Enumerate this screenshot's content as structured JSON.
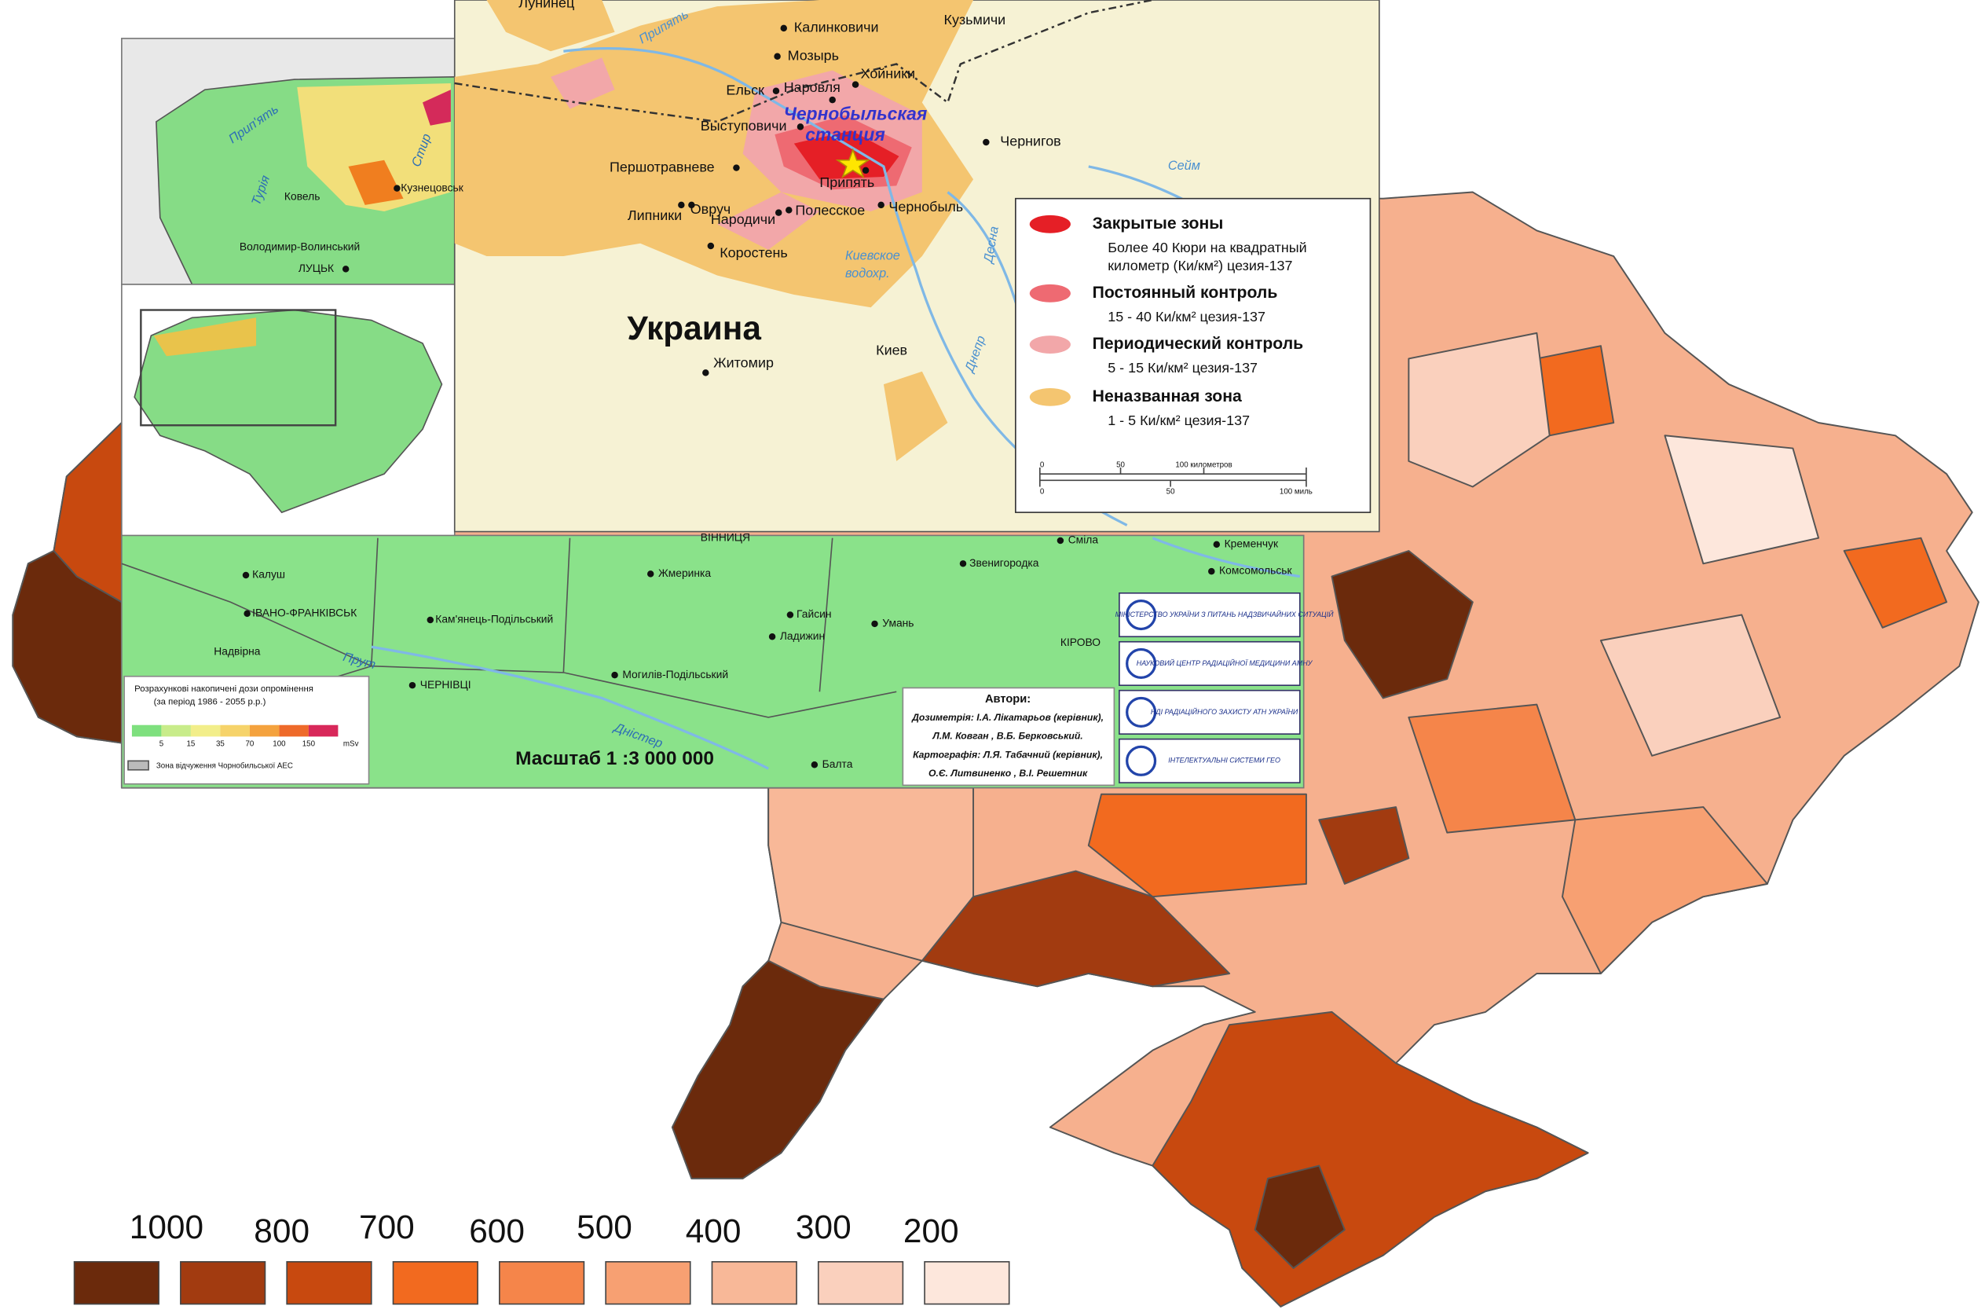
{
  "chernobyl_map": {
    "country": "Украина",
    "station": [
      "Чернобыльская",
      "станция"
    ],
    "places": [
      "Лунинец",
      "Калинковичи",
      "Кузьмичи",
      "Мозырь",
      "Хойники",
      "Ельск",
      "Наровля",
      "Выступовичи",
      "Чернигов",
      "Першотравневе",
      "Припять",
      "Овруч",
      "Чернобыль",
      "Липники",
      "Народичи",
      "Полесское",
      "Коростень",
      "Житомир",
      "Киев"
    ],
    "rivers": [
      "Припять",
      "Сейм",
      "Десна",
      "Киевское",
      "водохр.",
      "Днепр"
    ],
    "legend": [
      {
        "title": "Закрытые зоны",
        "desc": [
          "Более 40 Кюри на квадратный",
          "километр (Ки/км²) цезия-137"
        ]
      },
      {
        "title": "Постоянный контроль",
        "desc": [
          "15 - 40 Ки/км² цезия-137"
        ]
      },
      {
        "title": "Периодический контроль",
        "desc": [
          "5 - 15 Ки/км² цезия-137"
        ]
      },
      {
        "title": "Неназванная зона",
        "desc": [
          "1 - 5 Ки/км² цезия-137"
        ]
      }
    ],
    "scale_km": [
      "0",
      "50",
      "100 километров"
    ],
    "scale_mi": [
      "0",
      "50",
      "100 миль"
    ]
  },
  "dose_map": {
    "places": [
      "Ковель",
      "Кузнецовськ",
      "Володимир-Волинський",
      "ЛУЦЬК",
      "Калуш",
      "ІВАНО-ФРАНКІВСЬК",
      "Надвірна",
      "ЧЕРНІВЦІ",
      "Кам'янець-Подільський",
      "Могилів-Подільський",
      "Жмеринка",
      "Гайсин",
      "Ладижин",
      "Умань",
      "Звенигородка",
      "Сміла",
      "Кременчук",
      "Комсомольськ",
      "КІРОВО",
      "Балта",
      "ВІННИЦЯ"
    ],
    "rivers": [
      "Прип'ять",
      "Турія",
      "Стир",
      "Прут",
      "Дністер"
    ],
    "scale_text": "Масштаб 1 :3  000 000",
    "legend": {
      "title": [
        "Розрахункові накопичені дози опромінення",
        "(за період 1986 - 2055 р.р.)"
      ],
      "ticks": [
        5,
        15,
        35,
        70,
        100,
        150
      ],
      "unit": "mSv",
      "zone": "Зона відчуження Чорнобильської АЕС"
    },
    "authors": [
      "Автори:",
      "Дозиметрія: І.А. Лікатарьов (керівник),",
      "Л.М. Ковган , В.Б. Берковський.",
      "Картографія: Л.Я. Табачний (керівник),",
      "О.Є. Литвиненко , В.І. Решетник"
    ],
    "logos": [
      "МІНІСТЕРСТВО УКРАЇНИ З ПИТАНЬ НАДЗВИЧАЙНИХ СИТУАЦІЙ",
      "НАУКОВИЙ ЦЕНТР РАДІАЦІЙНОЇ МЕДИЦИНИ АМНУ",
      "НДІ РАДІАЦІЙНОГО ЗАХИСТУ АТН УКРАЇНИ",
      "ІНТЕЛЕКТУАЛЬНІ СИСТЕМИ ГЕО"
    ]
  },
  "risk_legend": {
    "labels": [
      1000,
      800,
      700,
      600,
      500,
      400,
      300,
      200
    ],
    "colors": [
      "#6b2a0c",
      "#a23b10",
      "#c8490f",
      "#f26a1f",
      "#f5854a",
      "#f7a072",
      "#f8b898",
      "#fad0bd",
      "#fde7dc"
    ]
  }
}
